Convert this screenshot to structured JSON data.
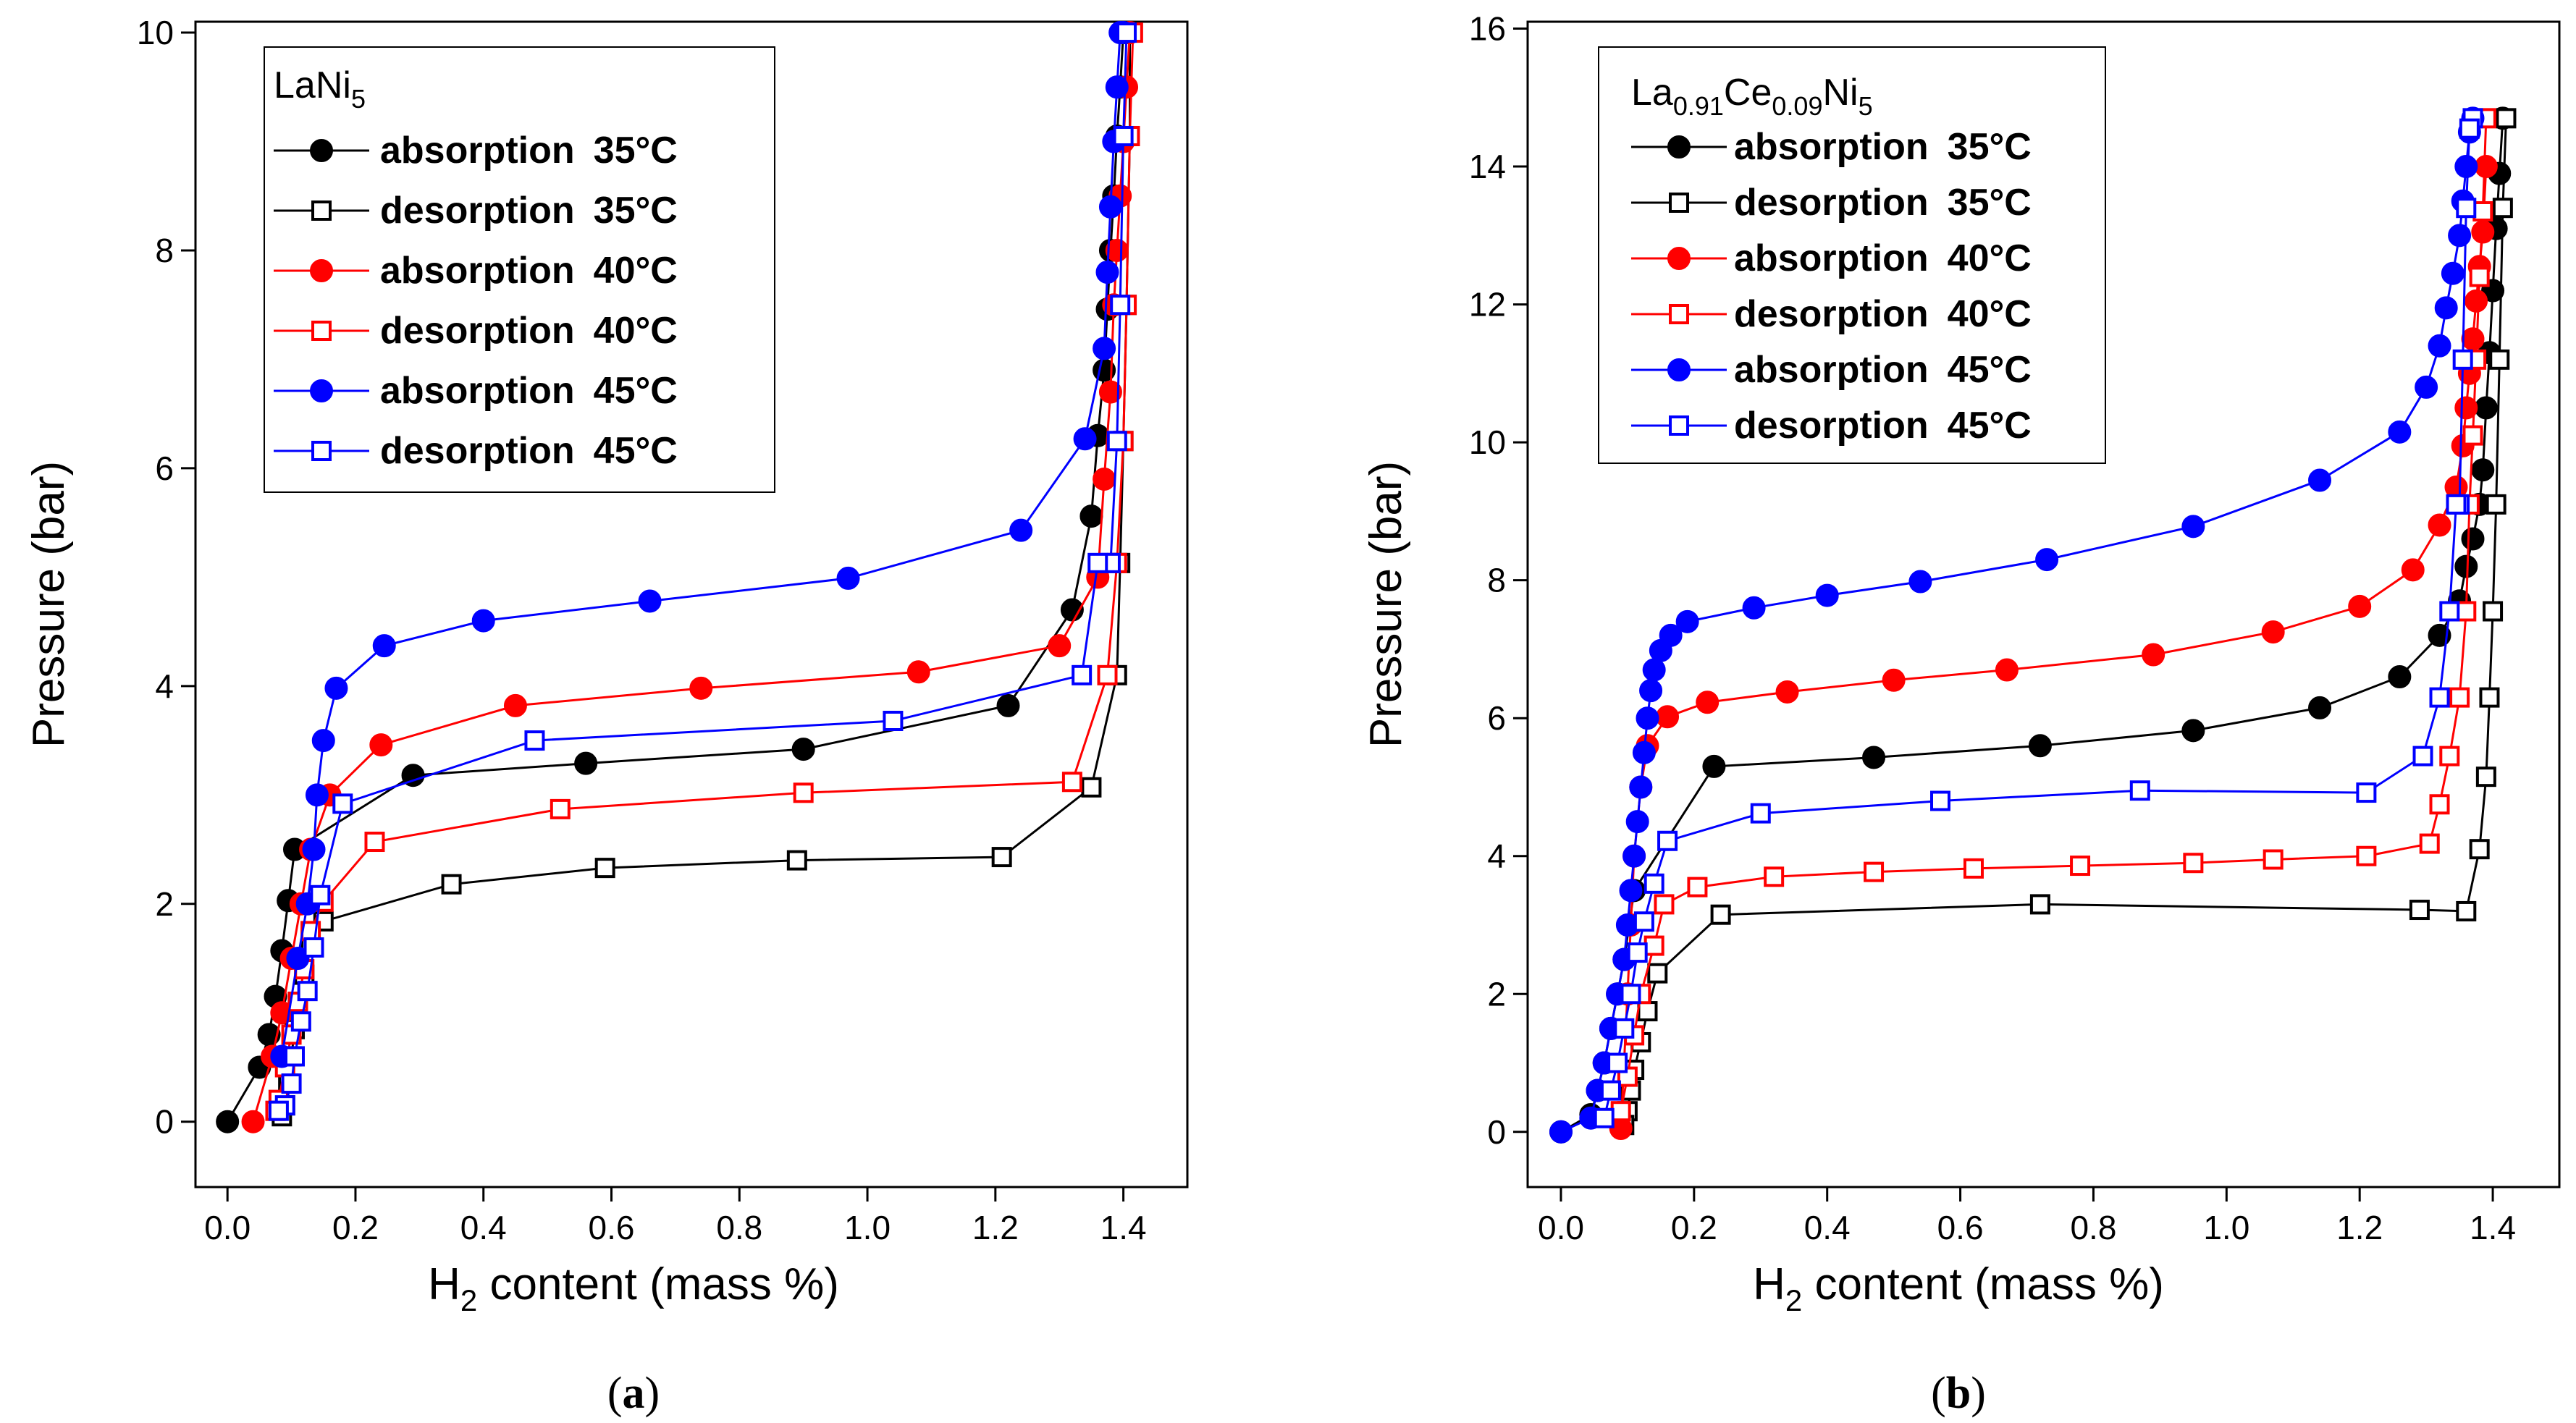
{
  "colors": {
    "black": "#000000",
    "red": "#ff0000",
    "blue": "#0000ff"
  },
  "panels": [
    {
      "label_open": "(",
      "label_letter": "a",
      "label_close": ")"
    },
    {
      "label_open": "(",
      "label_letter": "b",
      "label_close": ")"
    }
  ],
  "chart_data": [
    {
      "type": "line",
      "title": "",
      "legend_title": {
        "base": "LaNi",
        "sub": "5",
        "text": "LaNi5"
      },
      "xlabel": {
        "pre": "H",
        "sub": "2",
        "post": " content (mass %)"
      },
      "ylabel": "Pressure (bar)",
      "xlim": [
        -0.05,
        1.5
      ],
      "ylim": [
        -0.6,
        10.1
      ],
      "xticks": [
        "0.0",
        "0.2",
        "0.4",
        "0.6",
        "0.8",
        "1.0",
        "1.2",
        "1.4"
      ],
      "yticks": [
        "0",
        "2",
        "4",
        "6",
        "8",
        "10"
      ],
      "legend_position": "top-left",
      "series": [
        {
          "name": "absorption",
          "temp": "35°C",
          "color": "black",
          "marker": "filled-circle",
          "x": [
            0.0,
            0.05,
            0.065,
            0.075,
            0.085,
            0.095,
            0.105,
            0.29,
            0.56,
            0.9,
            1.22,
            1.32,
            1.35,
            1.36,
            1.37,
            1.375,
            1.38,
            1.385,
            1.39,
            1.395,
            1.4,
            1.405
          ],
          "y": [
            0.0,
            0.5,
            0.8,
            1.15,
            1.57,
            2.03,
            2.5,
            3.18,
            3.29,
            3.42,
            3.82,
            4.7,
            5.56,
            6.3,
            6.9,
            7.46,
            8.0,
            8.5,
            9.05,
            9.5,
            10.0,
            10.0
          ]
        },
        {
          "name": "desorption",
          "temp": "35°C",
          "color": "black",
          "marker": "open-square",
          "x": [
            1.41,
            1.41,
            1.405,
            1.4,
            1.395,
            1.39,
            1.35,
            1.21,
            0.89,
            0.59,
            0.35,
            0.15,
            0.13,
            0.12,
            0.11,
            0.105,
            0.1,
            0.095,
            0.09,
            0.085
          ],
          "y": [
            10.0,
            9.05,
            7.5,
            6.25,
            5.13,
            4.1,
            3.07,
            2.43,
            2.4,
            2.33,
            2.18,
            1.84,
            1.6,
            1.35,
            1.1,
            0.85,
            0.6,
            0.35,
            0.15,
            0.05
          ]
        },
        {
          "name": "absorption",
          "temp": "40°C",
          "color": "red",
          "marker": "filled-circle",
          "x": [
            0.04,
            0.07,
            0.085,
            0.1,
            0.115,
            0.13,
            0.16,
            0.24,
            0.45,
            0.74,
            1.08,
            1.3,
            1.36,
            1.37,
            1.38,
            1.385,
            1.39,
            1.395,
            1.4,
            1.405,
            1.41
          ],
          "y": [
            0.0,
            0.6,
            1.0,
            1.5,
            2.0,
            2.5,
            3.0,
            3.46,
            3.82,
            3.98,
            4.13,
            4.37,
            5.0,
            5.9,
            6.7,
            7.5,
            8.0,
            8.5,
            9.0,
            9.5,
            10.0
          ]
        },
        {
          "name": "desorption",
          "temp": "40°C",
          "color": "red",
          "marker": "open-square",
          "x": [
            1.415,
            1.41,
            1.405,
            1.4,
            1.39,
            1.375,
            1.32,
            0.9,
            0.52,
            0.23,
            0.15,
            0.13,
            0.12,
            0.11,
            0.1,
            0.09,
            0.08,
            0.075
          ],
          "y": [
            10.0,
            9.05,
            7.5,
            6.25,
            5.13,
            4.1,
            3.12,
            3.02,
            2.87,
            2.57,
            2.02,
            1.75,
            1.4,
            1.1,
            0.8,
            0.5,
            0.2,
            0.1
          ]
        },
        {
          "name": "absorption",
          "temp": "45°C",
          "color": "blue",
          "marker": "filled-circle",
          "x": [
            0.085,
            0.11,
            0.125,
            0.135,
            0.14,
            0.15,
            0.17,
            0.245,
            0.4,
            0.66,
            0.97,
            1.24,
            1.34,
            1.37,
            1.375,
            1.38,
            1.385,
            1.39,
            1.395,
            1.4
          ],
          "y": [
            0.6,
            1.5,
            2.0,
            2.5,
            3.0,
            3.5,
            3.98,
            4.37,
            4.6,
            4.78,
            4.99,
            5.43,
            6.27,
            7.1,
            7.8,
            8.4,
            9.0,
            9.5,
            10.0,
            10.0
          ]
        },
        {
          "name": "desorption",
          "temp": "45°C",
          "color": "blue",
          "marker": "open-square",
          "x": [
            1.405,
            1.4,
            1.395,
            1.39,
            1.38,
            1.36,
            1.335,
            1.04,
            0.48,
            0.18,
            0.145,
            0.135,
            0.125,
            0.115,
            0.105,
            0.1,
            0.09,
            0.08
          ],
          "y": [
            10.0,
            9.05,
            7.5,
            6.25,
            5.13,
            5.13,
            4.1,
            3.68,
            3.5,
            2.92,
            2.08,
            1.6,
            1.2,
            0.92,
            0.6,
            0.35,
            0.15,
            0.1
          ]
        }
      ]
    },
    {
      "type": "line",
      "title": "",
      "legend_title": {
        "parts": [
          [
            "La",
            ""
          ],
          [
            "0.91",
            "sub"
          ],
          [
            "Ce",
            ""
          ],
          [
            "0.09",
            "sub"
          ],
          [
            "Ni",
            ""
          ],
          [
            "5",
            "sub"
          ]
        ],
        "text": "La0.91Ce0.09Ni5"
      },
      "xlabel": {
        "pre": "H",
        "sub": "2",
        "post": " content (mass %)"
      },
      "ylabel": "Pressure (bar)",
      "xlim": [
        -0.05,
        1.5
      ],
      "ylim": [
        -0.8,
        16.1
      ],
      "xticks": [
        "0.0",
        "0.2",
        "0.4",
        "0.6",
        "0.8",
        "1.0",
        "1.2",
        "1.4"
      ],
      "yticks": [
        "0",
        "2",
        "4",
        "6",
        "8",
        "10",
        "12",
        "14",
        "16"
      ],
      "legend_position": "top-left",
      "series": [
        {
          "name": "absorption",
          "temp": "35°C",
          "color": "black",
          "marker": "filled-circle",
          "x": [
            0.0,
            0.045,
            0.055,
            0.065,
            0.075,
            0.085,
            0.095,
            0.11,
            0.23,
            0.47,
            0.72,
            0.95,
            1.14,
            1.26,
            1.32,
            1.35,
            1.36,
            1.37,
            1.38,
            1.385,
            1.39,
            1.395,
            1.4,
            1.405,
            1.41,
            1.415
          ],
          "y": [
            0.0,
            0.25,
            0.6,
            1.0,
            1.5,
            2.0,
            2.5,
            3.5,
            5.3,
            5.43,
            5.6,
            5.82,
            6.15,
            6.6,
            7.2,
            7.7,
            8.2,
            8.6,
            9.1,
            9.6,
            10.5,
            11.3,
            12.2,
            13.1,
            13.9,
            14.7
          ]
        },
        {
          "name": "desorption",
          "temp": "35°C",
          "color": "black",
          "marker": "open-square",
          "x": [
            1.42,
            1.415,
            1.41,
            1.405,
            1.4,
            1.395,
            1.39,
            1.38,
            1.36,
            1.29,
            0.72,
            0.24,
            0.145,
            0.13,
            0.12,
            0.11,
            0.105,
            0.1,
            0.095
          ],
          "y": [
            14.7,
            13.4,
            11.2,
            9.1,
            7.55,
            6.3,
            5.15,
            4.1,
            3.2,
            3.22,
            3.3,
            3.15,
            2.3,
            1.75,
            1.3,
            0.9,
            0.6,
            0.3,
            0.1
          ]
        },
        {
          "name": "absorption",
          "temp": "40°C",
          "color": "red",
          "marker": "filled-circle",
          "x": [
            0.09,
            0.1,
            0.105,
            0.11,
            0.12,
            0.13,
            0.16,
            0.22,
            0.34,
            0.5,
            0.67,
            0.89,
            1.07,
            1.2,
            1.28,
            1.32,
            1.345,
            1.355,
            1.36,
            1.365,
            1.37,
            1.375,
            1.38,
            1.385,
            1.39
          ],
          "y": [
            0.05,
            2.0,
            3.0,
            4.0,
            5.0,
            5.6,
            6.02,
            6.23,
            6.38,
            6.55,
            6.7,
            6.92,
            7.25,
            7.62,
            8.15,
            8.8,
            9.35,
            9.95,
            10.5,
            11.0,
            11.5,
            12.05,
            12.55,
            13.05,
            14.0
          ]
        },
        {
          "name": "desorption",
          "temp": "40°C",
          "color": "red",
          "marker": "open-square",
          "x": [
            1.39,
            1.385,
            1.38,
            1.375,
            1.37,
            1.365,
            1.36,
            1.35,
            1.335,
            1.32,
            1.305,
            1.21,
            1.07,
            0.95,
            0.78,
            0.62,
            0.47,
            0.32,
            0.205,
            0.155,
            0.14,
            0.12,
            0.11,
            0.1,
            0.09
          ],
          "y": [
            14.7,
            13.35,
            12.4,
            11.2,
            10.1,
            9.1,
            7.55,
            6.3,
            5.45,
            4.75,
            4.18,
            4.0,
            3.95,
            3.9,
            3.86,
            3.82,
            3.77,
            3.7,
            3.55,
            3.3,
            2.7,
            2.0,
            1.4,
            0.8,
            0.3
          ]
        },
        {
          "name": "absorption",
          "temp": "45°C",
          "color": "blue",
          "marker": "filled-circle",
          "x": [
            0.0,
            0.045,
            0.055,
            0.065,
            0.075,
            0.085,
            0.095,
            0.1,
            0.105,
            0.11,
            0.115,
            0.12,
            0.125,
            0.13,
            0.135,
            0.14,
            0.15,
            0.165,
            0.19,
            0.29,
            0.4,
            0.54,
            0.73,
            0.95,
            1.14,
            1.26,
            1.3,
            1.32,
            1.33,
            1.34,
            1.35,
            1.355,
            1.36,
            1.365,
            1.37
          ],
          "y": [
            0.0,
            0.2,
            0.6,
            1.0,
            1.5,
            2.0,
            2.5,
            3.0,
            3.5,
            4.0,
            4.5,
            5.0,
            5.5,
            6.0,
            6.4,
            6.7,
            6.98,
            7.2,
            7.4,
            7.6,
            7.78,
            7.98,
            8.3,
            8.78,
            9.45,
            10.15,
            10.8,
            11.4,
            11.95,
            12.45,
            13.0,
            13.5,
            14.0,
            14.5,
            14.7
          ]
        },
        {
          "name": "desorption",
          "temp": "45°C",
          "color": "blue",
          "marker": "open-square",
          "x": [
            1.37,
            1.365,
            1.36,
            1.355,
            1.35,
            1.345,
            1.335,
            1.32,
            1.295,
            1.21,
            0.87,
            0.57,
            0.3,
            0.16,
            0.14,
            0.125,
            0.115,
            0.105,
            0.095,
            0.085,
            0.075,
            0.065
          ],
          "y": [
            14.7,
            14.55,
            13.4,
            11.2,
            9.1,
            9.1,
            7.55,
            6.3,
            5.45,
            4.92,
            4.95,
            4.8,
            4.62,
            4.22,
            3.6,
            3.05,
            2.6,
            2.0,
            1.5,
            1.0,
            0.6,
            0.2
          ]
        }
      ]
    }
  ]
}
